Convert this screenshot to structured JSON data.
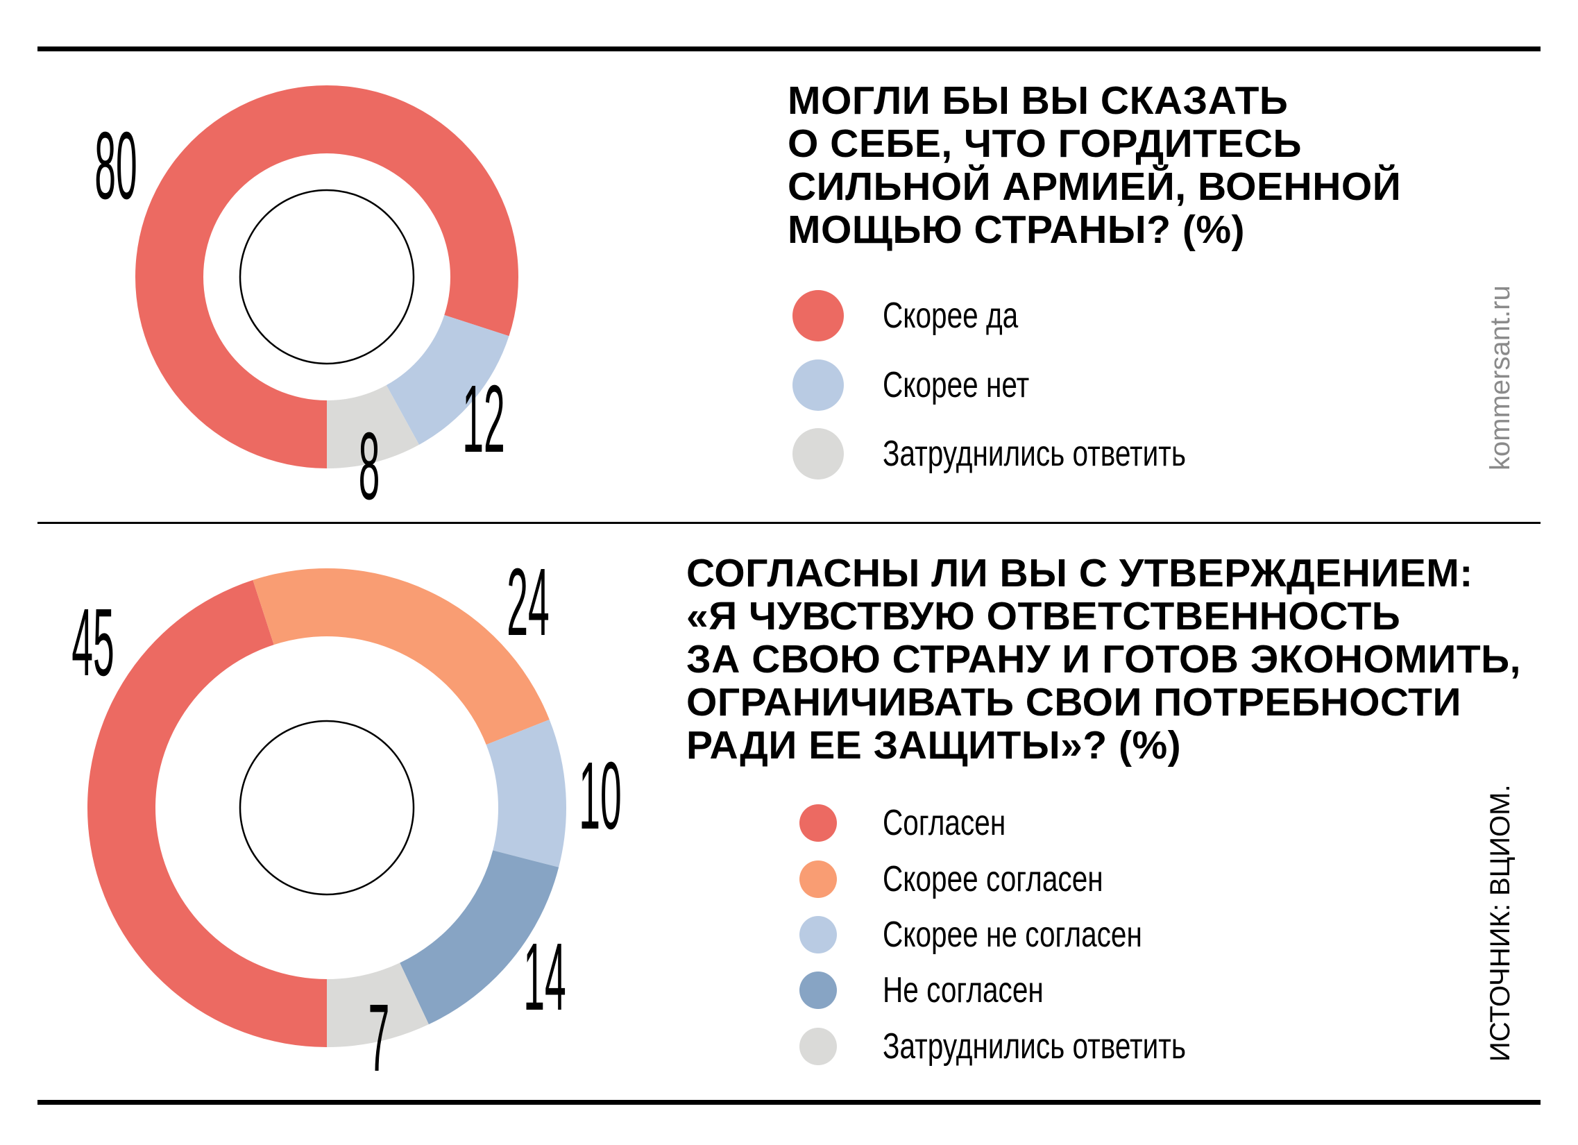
{
  "chart_data": [
    {
      "type": "pie",
      "variant": "donut",
      "title": "МОГЛИ БЫ ВЫ СКАЗАТЬ О СЕБЕ, ЧТО ГОРДИТЕСЬ СИЛЬНОЙ АРМИЕЙ, ВОЕННОЙ МОЩЬЮ СТРАНЫ? (%)",
      "title_lines": [
        "МОГЛИ БЫ ВЫ СКАЗАТЬ",
        "О СЕБЕ, ЧТО ГОРДИТЕСЬ",
        "СИЛЬНОЙ АРМИЕЙ, ВОЕННОЙ",
        "МОЩЬЮ СТРАНЫ? (%)"
      ],
      "legend_placement": "right",
      "slices": [
        {
          "name": "Скорее да",
          "value": 80,
          "label": "80",
          "color": "#ec6a62"
        },
        {
          "name": "Скорее нет",
          "value": 12,
          "label": "12",
          "color": "#b9cbe3"
        },
        {
          "name": "Затруднились ответить",
          "value": 8,
          "label": "8",
          "color": "#dadad8"
        }
      ]
    },
    {
      "type": "pie",
      "variant": "donut",
      "title": "СОГЛАСНЫ ЛИ ВЫ С УТВЕРЖДЕНИЕМ: «Я ЧУВСТВУЮ ОТВЕТСТВЕННОСТЬ ЗА СВОЮ СТРАНУ И ГОТОВ ЭКОНОМИТЬ, ОГРАНИЧИВАТЬ СВОИ ПОТРЕБНОСТИ РАДИ ЕЕ ЗАЩИТЫ»? (%)",
      "title_lines": [
        "СОГЛАСНЫ ЛИ ВЫ С УТВЕРЖДЕНИЕМ:",
        "«Я ЧУВСТВУЮ ОТВЕТСТВЕННОСТЬ",
        "ЗА СВОЮ СТРАНУ И ГОТОВ ЭКОНОМИТЬ,",
        "ОГРАНИЧИВАТЬ СВОИ ПОТРЕБНОСТИ",
        "РАДИ ЕЕ ЗАЩИТЫ»? (%)"
      ],
      "legend_placement": "right",
      "slices": [
        {
          "name": "Согласен",
          "value": 45,
          "label": "45",
          "color": "#ec6a62"
        },
        {
          "name": "Скорее согласен",
          "value": 24,
          "label": "24",
          "color": "#f99d73"
        },
        {
          "name": "Скорее не согласен",
          "value": 10,
          "label": "10",
          "color": "#b9cbe3"
        },
        {
          "name": "Не согласен",
          "value": 14,
          "label": "14",
          "color": "#87a4c4"
        },
        {
          "name": "Затруднились ответить",
          "value": 7,
          "label": "7",
          "color": "#dadad8"
        }
      ]
    }
  ],
  "watermark": "kommersant.ru",
  "source": "ИСТОЧНИК: ВЦИОМ."
}
